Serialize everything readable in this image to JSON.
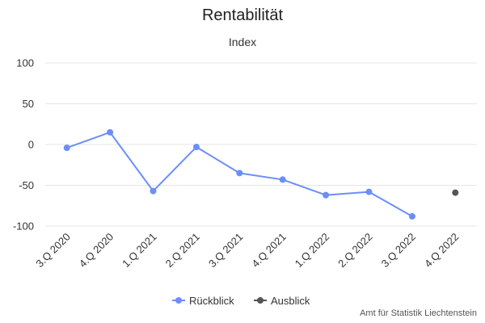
{
  "chart_data": {
    "type": "line",
    "title": "Rentabilität",
    "subtitle": "",
    "ylabel": "Index",
    "ylim": [
      -100,
      100
    ],
    "yticks": [
      100,
      50,
      0,
      -50,
      -100
    ],
    "categories": [
      "3.Q 2020",
      "4.Q 2020",
      "1.Q 2021",
      "2.Q 2021",
      "3.Q 2021",
      "4.Q 2021",
      "1.Q 2022",
      "2.Q 2022",
      "3.Q 2022",
      "4.Q 2022"
    ],
    "series": [
      {
        "name": "Rückblick",
        "color": "#6b8ef8",
        "values": [
          -4,
          15,
          -57,
          -3,
          -35,
          -43,
          -62,
          -58,
          -88,
          null
        ]
      },
      {
        "name": "Ausblick",
        "color": "#555555",
        "values": [
          null,
          null,
          null,
          null,
          null,
          null,
          null,
          null,
          null,
          -59
        ]
      }
    ],
    "legend_position": "bottom-center",
    "grid": true
  },
  "credits": "Amt für Statistik Liechtenstein"
}
